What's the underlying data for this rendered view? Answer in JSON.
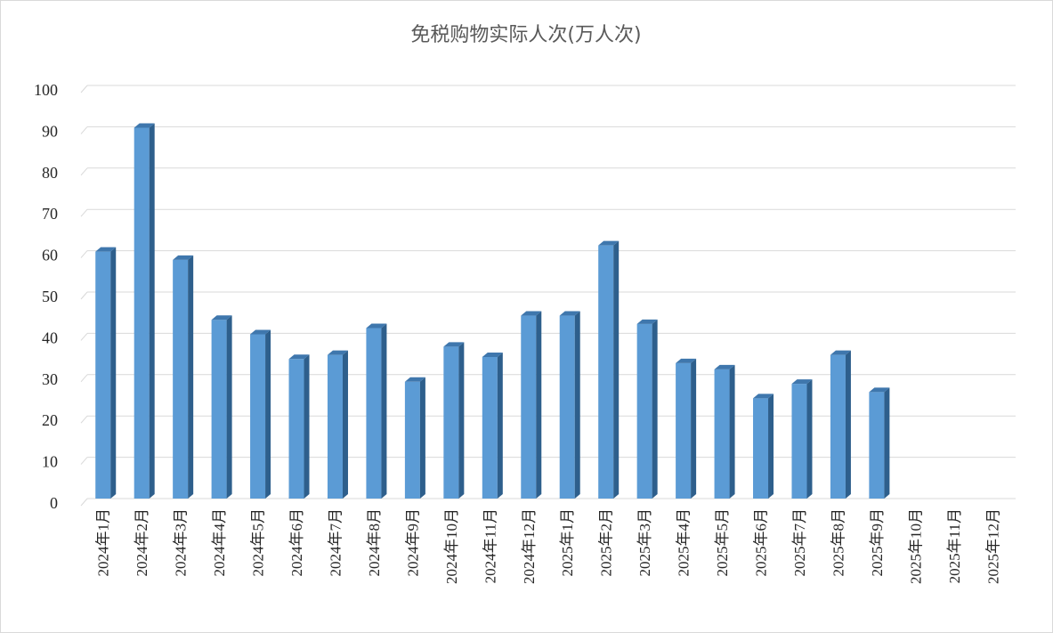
{
  "chart_data": {
    "type": "bar",
    "title": "免税购物实际人次(万人次)",
    "xlabel": "",
    "ylabel": "",
    "ylim": [
      0,
      100
    ],
    "yticks": [
      0,
      10,
      20,
      30,
      40,
      50,
      60,
      70,
      80,
      90,
      100
    ],
    "grid": true,
    "legend": "none",
    "bar_color": "#5b9bd5",
    "bar_side_color": "#2e5f8c",
    "bar_top_color": "#3f77ad",
    "gridline_color": "#d9d9d9",
    "categories": [
      "2024年1月",
      "2024年2月",
      "2024年3月",
      "2024年4月",
      "2024年5月",
      "2024年6月",
      "2024年7月",
      "2024年8月",
      "2024年9月",
      "2024年10月",
      "2024年11月",
      "2024年12月",
      "2025年1月",
      "2025年2月",
      "2025年3月",
      "2025年4月",
      "2025年5月",
      "2025年6月",
      "2025年7月",
      "2025年8月",
      "2025年9月",
      "2025年10月",
      "2025年11月",
      "2025年12月"
    ],
    "values": [
      61.5,
      91.5,
      59.5,
      45,
      41.5,
      35.5,
      36.5,
      43,
      30,
      38.5,
      36,
      46,
      46,
      63,
      44,
      34.5,
      33,
      26,
      29.5,
      36.5,
      27.5,
      null,
      null,
      null
    ]
  }
}
